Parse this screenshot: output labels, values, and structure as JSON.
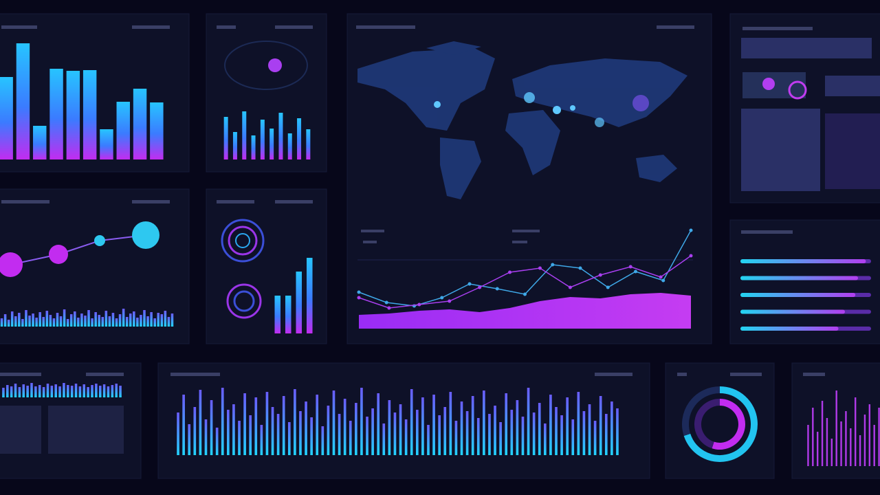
{
  "bar_panel": {
    "values": [
      120,
      169,
      49,
      132,
      129,
      130,
      44,
      84,
      103,
      83
    ]
  },
  "mini_bars": {
    "values": [
      62,
      40,
      70,
      35,
      58,
      45,
      68,
      38,
      60,
      44
    ]
  },
  "line_chart": {
    "area": [
      20,
      22,
      26,
      28,
      24,
      30,
      40,
      46,
      44,
      50,
      52,
      48
    ],
    "series": [
      {
        "color": "#3fa8e8",
        "values": [
          53,
          38,
          33,
          45,
          65,
          58,
          50,
          93,
          88,
          60,
          83,
          70,
          143
        ]
      },
      {
        "color": "#a93ff0",
        "values": [
          45,
          30,
          35,
          40,
          60,
          82,
          88,
          60,
          78,
          90,
          75,
          106
        ]
      }
    ]
  },
  "scatter": {
    "x": [
      15,
      85,
      145,
      212
    ],
    "y": [
      35,
      50,
      70,
      78
    ],
    "size": [
      18,
      14,
      8,
      20
    ]
  },
  "wave_left": {
    "values": [
      12,
      18,
      10,
      22,
      15,
      20,
      11,
      24,
      16,
      19,
      13,
      21,
      14,
      23,
      17,
      12,
      20,
      15,
      25,
      11,
      18,
      22,
      13,
      19,
      16,
      24,
      12,
      21,
      17,
      14,
      23,
      15,
      20,
      12,
      18,
      26,
      14,
      19,
      22,
      13,
      17,
      24,
      15,
      21,
      12,
      20,
      18,
      23,
      14,
      19
    ]
  },
  "gauge_bars": {
    "values": [
      55,
      55,
      90,
      110
    ]
  },
  "progress": {
    "values": [
      96,
      90,
      88,
      80,
      75
    ]
  },
  "wave_small": {
    "values": [
      14,
      18,
      16,
      20,
      15,
      19,
      17,
      21,
      16,
      18,
      15,
      20,
      17,
      19,
      16,
      21,
      18,
      17,
      20,
      16,
      19,
      15,
      18,
      20,
      17,
      19,
      16,
      18,
      20,
      17
    ]
  },
  "spectrum": {
    "values": [
      62,
      88,
      45,
      70,
      95,
      52,
      80,
      40,
      98,
      66,
      74,
      50,
      90,
      58,
      84,
      44,
      92,
      70,
      60,
      86,
      48,
      96,
      64,
      78,
      55,
      88,
      42,
      72,
      94,
      60,
      82,
      50,
      76,
      98,
      56,
      68,
      90,
      46,
      80,
      62,
      74,
      52,
      96,
      66,
      84,
      44,
      88,
      58,
      70,
      92,
      50,
      78,
      64,
      86,
      54,
      94,
      60,
      72,
      48,
      90,
      66,
      80,
      56,
      98,
      62,
      76,
      46,
      88,
      70,
      58,
      84,
      52,
      92,
      64,
      74,
      50,
      86,
      60,
      78,
      68
    ]
  },
  "donut": {
    "values": [
      70,
      30
    ],
    "inner": [
      55,
      45
    ]
  },
  "corner_bars": {
    "values": [
      60,
      85,
      50,
      95,
      70,
      40,
      110,
      65,
      80,
      55,
      100,
      45,
      75,
      90,
      60,
      85
    ]
  }
}
